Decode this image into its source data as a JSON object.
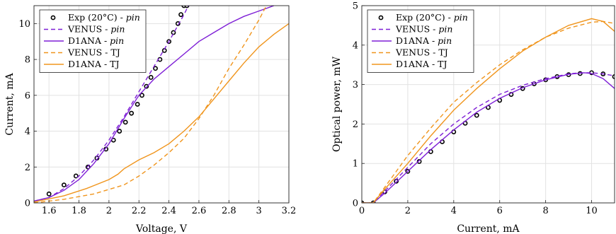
{
  "chart_data": [
    {
      "type": "line",
      "xlabel": "Voltage, V",
      "ylabel": "Current, mA",
      "xlim": [
        1.5,
        3.2
      ],
      "ylim": [
        0,
        11
      ],
      "xticks": [
        "1.6",
        "1.8",
        "2",
        "2.2",
        "2.4",
        "2.6",
        "2.8",
        "3",
        "3.2"
      ],
      "xtick_values": [
        1.6,
        1.8,
        2.0,
        2.2,
        2.4,
        2.6,
        2.8,
        3.0,
        3.2
      ],
      "yticks": [
        "0",
        "2",
        "4",
        "6",
        "8",
        "10"
      ],
      "ytick_values": [
        0,
        2,
        4,
        6,
        8,
        10
      ],
      "grid": true,
      "legend_position": "top-left",
      "series": [
        {
          "name": "Exp (20°C) - ",
          "name_italic": "pin",
          "style": "markers",
          "color": "#000000",
          "x": [
            1.6,
            1.7,
            1.78,
            1.86,
            1.92,
            1.98,
            2.03,
            2.07,
            2.11,
            2.15,
            2.19,
            2.22,
            2.25,
            2.28,
            2.31,
            2.34,
            2.37,
            2.4,
            2.43,
            2.46,
            2.48,
            2.5,
            2.52
          ],
          "y": [
            0.5,
            1.0,
            1.5,
            2.0,
            2.5,
            3.0,
            3.5,
            4.0,
            4.5,
            5.0,
            5.5,
            6.0,
            6.5,
            7.0,
            7.5,
            8.0,
            8.5,
            9.0,
            9.5,
            10.0,
            10.5,
            11.0,
            11.0
          ]
        },
        {
          "name": "VENUS - ",
          "name_italic": "pin",
          "style": "dashed",
          "color": "#7e1fd6",
          "x": [
            1.5,
            1.6,
            1.7,
            1.8,
            1.9,
            2.0,
            2.1,
            2.2,
            2.3,
            2.4,
            2.5,
            2.53
          ],
          "y": [
            0.1,
            0.3,
            0.8,
            1.5,
            2.4,
            3.5,
            4.8,
            6.2,
            7.6,
            9.0,
            10.5,
            11.0
          ]
        },
        {
          "name": "D1ANA - ",
          "name_italic": "pin",
          "style": "solid",
          "color": "#7e1fd6",
          "x": [
            1.5,
            1.6,
            1.7,
            1.8,
            1.9,
            2.0,
            2.1,
            2.2,
            2.3,
            2.4,
            2.5,
            2.6,
            2.7,
            2.8,
            2.9,
            3.0,
            3.1
          ],
          "y": [
            0.1,
            0.3,
            0.7,
            1.3,
            2.2,
            3.3,
            4.7,
            6.0,
            6.9,
            7.6,
            8.3,
            9.0,
            9.5,
            10.0,
            10.4,
            10.7,
            11.0
          ]
        },
        {
          "name": "VENUS - TJ",
          "style": "dashed",
          "color": "#f0951d",
          "x": [
            1.5,
            1.7,
            1.9,
            2.1,
            2.2,
            2.3,
            2.4,
            2.5,
            2.6,
            2.7,
            2.8,
            2.9,
            3.0,
            3.05
          ],
          "y": [
            0.0,
            0.2,
            0.5,
            1.0,
            1.5,
            2.1,
            2.8,
            3.6,
            4.7,
            6.0,
            7.5,
            8.8,
            10.2,
            11.0
          ]
        },
        {
          "name": "D1ANA - TJ",
          "style": "solid",
          "color": "#f0951d",
          "x": [
            1.5,
            1.7,
            1.85,
            2.0,
            2.06,
            2.1,
            2.2,
            2.3,
            2.4,
            2.5,
            2.6,
            2.7,
            2.8,
            2.9,
            3.0,
            3.1,
            3.2
          ],
          "y": [
            0.05,
            0.4,
            0.8,
            1.3,
            1.6,
            1.9,
            2.4,
            2.8,
            3.3,
            4.0,
            4.8,
            5.8,
            6.8,
            7.8,
            8.7,
            9.4,
            10.0
          ]
        }
      ]
    },
    {
      "type": "line",
      "xlabel": "Current, mA",
      "ylabel": "Optical power, mW",
      "xlim": [
        0,
        11
      ],
      "ylim": [
        0,
        5
      ],
      "xticks": [
        "0",
        "2",
        "4",
        "6",
        "8",
        "10"
      ],
      "xtick_values": [
        0,
        2,
        4,
        6,
        8,
        10
      ],
      "yticks": [
        "0",
        "1",
        "2",
        "3",
        "4",
        "5"
      ],
      "ytick_values": [
        0,
        1,
        2,
        3,
        4,
        5
      ],
      "grid": true,
      "legend_position": "top-left",
      "series": [
        {
          "name": "Exp (20°C) - ",
          "name_italic": "pin",
          "style": "markers",
          "color": "#000000",
          "x": [
            0,
            0.5,
            1.0,
            1.5,
            2.0,
            2.5,
            3.0,
            3.5,
            4.0,
            4.5,
            5.0,
            5.5,
            6.0,
            6.5,
            7.0,
            7.5,
            8.0,
            8.5,
            9.0,
            9.5,
            10.0,
            10.5,
            11.0
          ],
          "y": [
            0.0,
            0.0,
            0.28,
            0.55,
            0.8,
            1.05,
            1.3,
            1.55,
            1.8,
            2.02,
            2.22,
            2.42,
            2.6,
            2.75,
            2.9,
            3.02,
            3.12,
            3.2,
            3.25,
            3.28,
            3.3,
            3.27,
            3.2
          ]
        },
        {
          "name": "VENUS - ",
          "name_italic": "pin",
          "style": "dashed",
          "color": "#7e1fd6",
          "x": [
            0,
            0.5,
            1.0,
            2.0,
            3.0,
            4.0,
            5.0,
            6.0,
            7.0,
            8.0,
            9.0,
            9.5,
            10.0,
            10.5,
            11.0
          ],
          "y": [
            0.0,
            0.0,
            0.3,
            0.9,
            1.5,
            2.0,
            2.42,
            2.75,
            2.98,
            3.15,
            3.27,
            3.3,
            3.3,
            3.27,
            3.22
          ]
        },
        {
          "name": "D1ANA - ",
          "name_italic": "pin",
          "style": "solid",
          "color": "#7e1fd6",
          "x": [
            0,
            0.5,
            1.0,
            2.0,
            3.0,
            4.0,
            5.0,
            6.0,
            7.0,
            8.0,
            9.0,
            9.7,
            10.0,
            10.5,
            11.0
          ],
          "y": [
            0.0,
            0.0,
            0.25,
            0.8,
            1.35,
            1.85,
            2.3,
            2.65,
            2.92,
            3.12,
            3.26,
            3.3,
            3.28,
            3.15,
            2.9
          ]
        },
        {
          "name": "VENUS - TJ",
          "style": "dashed",
          "color": "#f0951d",
          "x": [
            0,
            0.5,
            1.0,
            2.0,
            3.0,
            4.0,
            5.0,
            6.0,
            7.0,
            8.0,
            9.0,
            10.0,
            10.5,
            11.0
          ],
          "y": [
            0.0,
            0.0,
            0.4,
            1.2,
            1.9,
            2.55,
            3.05,
            3.5,
            3.88,
            4.2,
            4.43,
            4.58,
            4.6,
            4.55
          ]
        },
        {
          "name": "D1ANA - TJ",
          "style": "solid",
          "color": "#f0951d",
          "x": [
            0,
            0.5,
            1.0,
            2.0,
            3.0,
            4.0,
            5.0,
            6.0,
            7.0,
            8.0,
            9.0,
            10.0,
            10.5,
            11.0
          ],
          "y": [
            0.0,
            0.0,
            0.35,
            1.0,
            1.7,
            2.35,
            2.9,
            3.4,
            3.85,
            4.2,
            4.5,
            4.67,
            4.6,
            4.35
          ]
        }
      ]
    }
  ]
}
